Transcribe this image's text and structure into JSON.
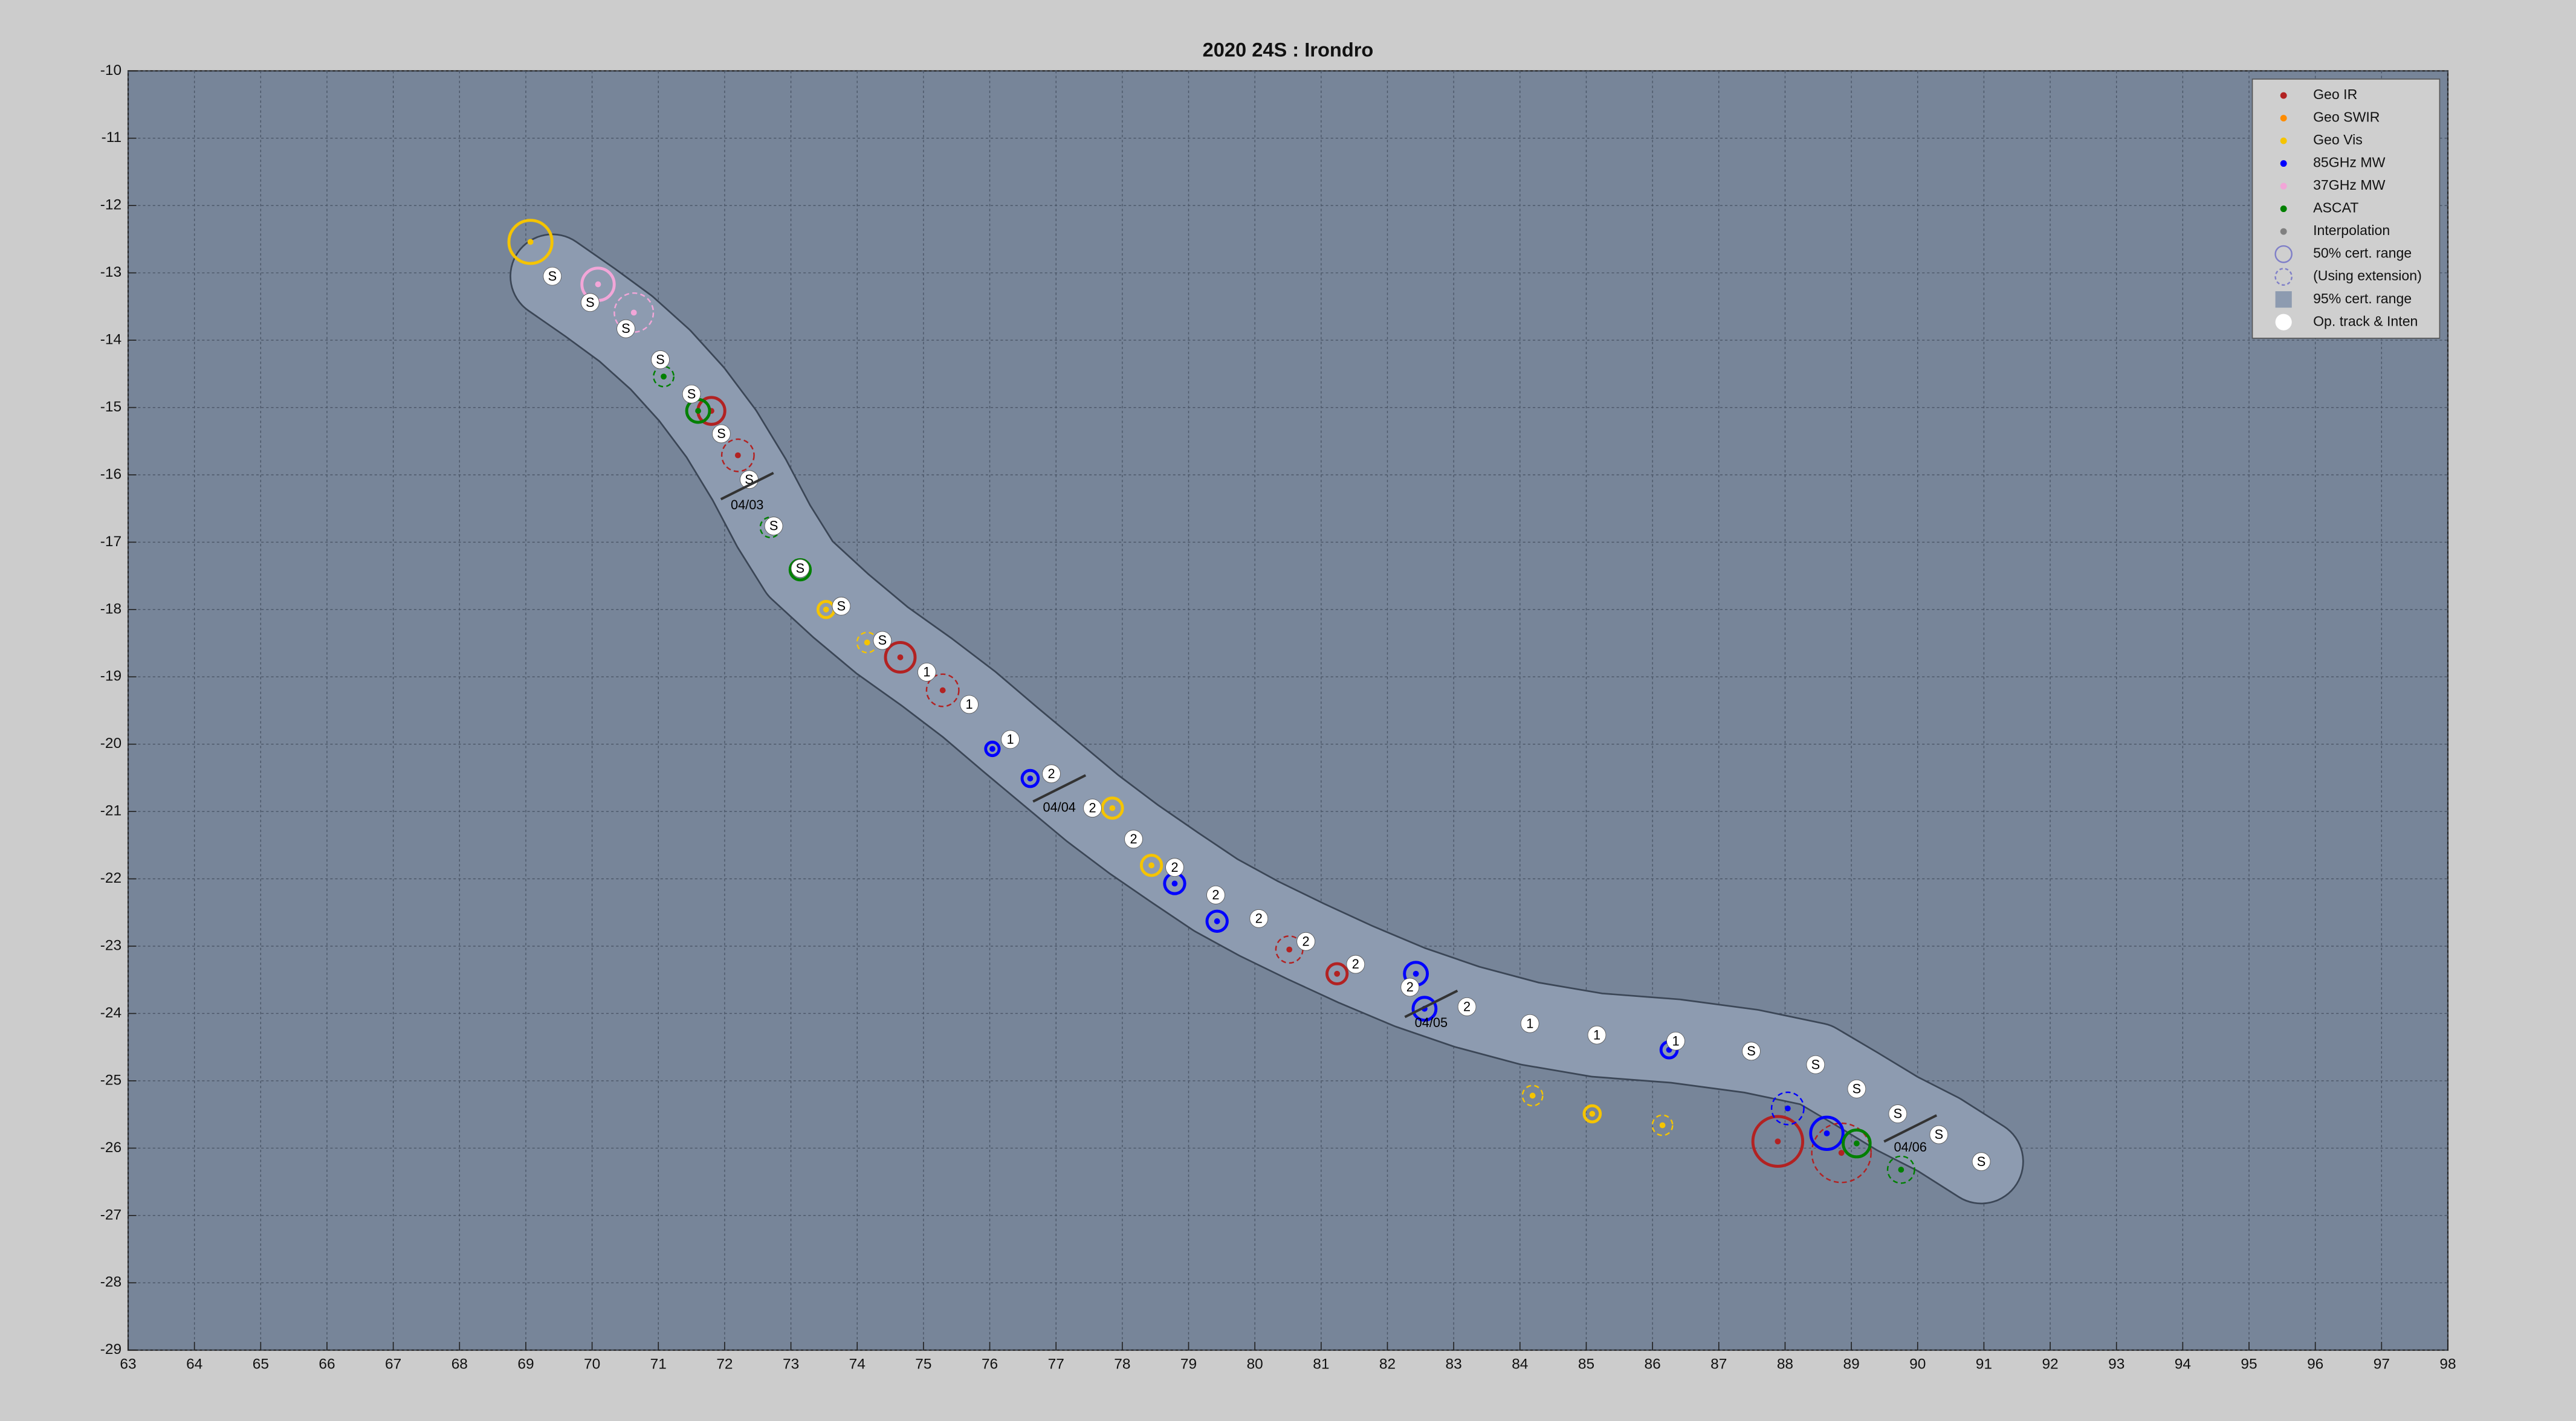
{
  "chart_data": {
    "type": "track",
    "title": "2020  24S :  Irondro",
    "xlim": [
      63,
      98
    ],
    "ylim": [
      -29,
      -10
    ],
    "xticks": [
      63,
      64,
      65,
      66,
      67,
      68,
      69,
      70,
      71,
      72,
      73,
      74,
      75,
      76,
      77,
      78,
      79,
      80,
      81,
      82,
      83,
      84,
      85,
      86,
      87,
      88,
      89,
      90,
      91,
      92,
      93,
      94,
      95,
      96,
      97,
      98
    ],
    "yticks": [
      -10,
      -11,
      -12,
      -13,
      -14,
      -15,
      -16,
      -17,
      -18,
      -19,
      -20,
      -21,
      -22,
      -23,
      -24,
      -25,
      -26,
      -27,
      -28,
      -29
    ],
    "grid": true,
    "legend": "upper right",
    "track": {
      "name": "Op. track & Inten",
      "color": "#ffffff",
      "x": [
        69.4,
        69.97,
        70.51,
        71.03,
        71.5,
        71.95,
        72.37,
        72.74,
        73.14,
        73.76,
        74.38,
        75.05,
        75.69,
        76.31,
        76.93,
        77.55,
        78.17,
        78.79,
        79.41,
        80.06,
        80.77,
        81.52,
        82.34,
        83.2,
        84.15,
        85.16,
        86.35,
        87.49,
        88.46,
        89.08,
        89.7,
        90.32,
        90.96
      ],
      "y": [
        -13.05,
        -13.44,
        -13.83,
        -14.29,
        -14.8,
        -15.39,
        -16.07,
        -16.76,
        -17.39,
        -17.95,
        -18.46,
        -18.93,
        -19.41,
        -19.93,
        -20.44,
        -20.95,
        -21.41,
        -21.83,
        -22.24,
        -22.59,
        -22.93,
        -23.27,
        -23.61,
        -23.9,
        -24.15,
        -24.32,
        -24.41,
        -24.56,
        -24.76,
        -25.12,
        -25.49,
        -25.8,
        -26.2
      ],
      "labels": [
        "S",
        "S",
        "S",
        "S",
        "S",
        "S",
        "S",
        "S",
        "S",
        "S",
        "S",
        "1",
        "1",
        "1",
        "2",
        "2",
        "2",
        "2",
        "2",
        "2",
        "2",
        "2",
        "2",
        "2",
        "1",
        "1",
        "1",
        "S",
        "S",
        "S",
        "S",
        "S",
        "S"
      ]
    },
    "series": [
      {
        "name": "Geo IR",
        "color": "#b22222",
        "x": [
          71.8,
          72.2,
          74.65,
          75.29,
          80.52,
          81.24,
          87.89,
          88.85
        ],
        "y": [
          -15.05,
          -15.71,
          -18.71,
          -19.2,
          -23.05,
          -23.41,
          -25.9,
          -26.07
        ],
        "sizes": [
          0.2,
          0.24,
          0.22,
          0.24,
          0.2,
          0.15,
          0.37,
          0.44
        ],
        "dashed": [
          false,
          true,
          false,
          true,
          true,
          false,
          false,
          true
        ]
      },
      {
        "name": "Geo SWIR",
        "color": "#ff8c00",
        "x": [],
        "y": [],
        "sizes": [],
        "dashed": []
      },
      {
        "name": "Geo Vis",
        "color": "#f5c400",
        "x": [
          69.07,
          73.53,
          74.15,
          77.85,
          78.44,
          84.19,
          85.09,
          86.15
        ],
        "y": [
          -12.54,
          -18.0,
          -18.49,
          -20.95,
          -21.8,
          -25.22,
          -25.49,
          -25.66
        ],
        "sizes": [
          0.32,
          0.12,
          0.15,
          0.15,
          0.15,
          0.15,
          0.12,
          0.15
        ],
        "dashed": [
          false,
          false,
          true,
          false,
          false,
          true,
          false,
          true
        ]
      },
      {
        "name": "85GHz MW",
        "color": "#0000ff",
        "x": [
          76.04,
          76.61,
          78.79,
          79.43,
          82.43,
          82.56,
          86.25,
          88.04,
          88.63
        ],
        "y": [
          -20.07,
          -20.51,
          -22.07,
          -22.63,
          -23.41,
          -23.93,
          -24.54,
          -25.41,
          -25.78
        ],
        "sizes": [
          0.1,
          0.12,
          0.15,
          0.15,
          0.17,
          0.17,
          0.12,
          0.24,
          0.24
        ],
        "dashed": [
          false,
          false,
          false,
          false,
          false,
          false,
          false,
          true,
          false
        ]
      },
      {
        "name": "37GHz MW",
        "color": "#f2a6d8",
        "x": [
          70.09,
          70.63
        ],
        "y": [
          -13.17,
          -13.59
        ],
        "sizes": [
          0.24,
          0.29
        ],
        "dashed": [
          false,
          true
        ]
      },
      {
        "name": "ASCAT",
        "color": "#008000",
        "x": [
          71.08,
          71.6,
          72.69,
          73.14,
          89.08,
          89.75
        ],
        "y": [
          -14.54,
          -15.05,
          -16.78,
          -17.41,
          -25.93,
          -26.32
        ],
        "sizes": [
          0.15,
          0.17,
          0.15,
          0.15,
          0.2,
          0.2
        ],
        "dashed": [
          true,
          false,
          true,
          false,
          false,
          true
        ]
      },
      {
        "name": "Interpolation",
        "color": "#808080",
        "x": [],
        "y": [],
        "sizes": [],
        "dashed": []
      }
    ],
    "legend_extra": [
      {
        "name": "50% cert. range",
        "color": "#8080c8",
        "symbol": "ring"
      },
      {
        "name": "(Using extension)",
        "color": "#8080c8",
        "symbol": "dashed-ring"
      },
      {
        "name": "95% cert. range",
        "color": "#8d9bb0",
        "symbol": "square"
      }
    ],
    "cone_color": "#8d9bb0",
    "annotations": [
      {
        "text": "04/03",
        "x": 72.34,
        "y": -16.46
      },
      {
        "text": "04/04",
        "x": 77.05,
        "y": -20.95
      },
      {
        "text": "04/05",
        "x": 82.66,
        "y": -24.15
      },
      {
        "text": "04/06",
        "x": 89.89,
        "y": -26.0
      }
    ]
  }
}
